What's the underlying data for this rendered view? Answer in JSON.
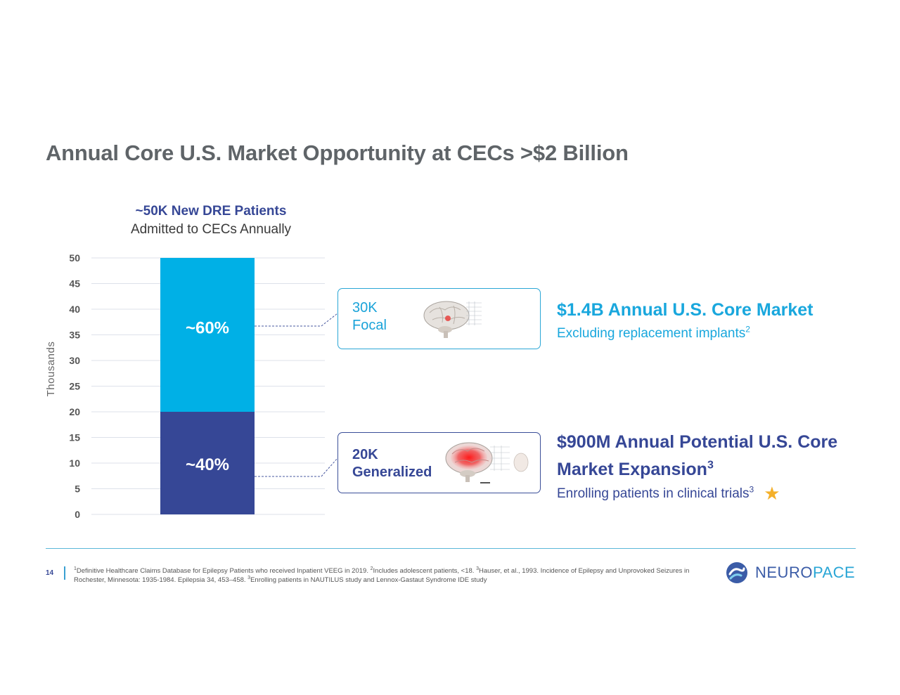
{
  "title": "Annual Core U.S. Market Opportunity at CECs >$2 Billion",
  "chart_heading": {
    "line1": "~50K New DRE Patients",
    "line2": "Admitted to CECs Annually"
  },
  "chart_data": {
    "type": "bar",
    "stacked": true,
    "categories": [
      ""
    ],
    "series": [
      {
        "name": "",
        "values": [
          20
        ],
        "label": "~40%",
        "color": "#364796"
      },
      {
        "name": "",
        "values": [
          30
        ],
        "label": "~60%",
        "color": "#00b0e6"
      }
    ],
    "ylabel": "Thousands",
    "ylim": [
      0,
      50
    ],
    "yticks": [
      0,
      5,
      10,
      15,
      20,
      25,
      30,
      35,
      40,
      45,
      50
    ],
    "grid": true
  },
  "callouts": {
    "focal": {
      "count": "30K",
      "label": "Focal"
    },
    "generalized": {
      "count": "20K",
      "label": "Generalized"
    }
  },
  "market": {
    "core_heading": "$1.4B Annual U.S. Core Market",
    "core_sub": "Excluding replacement implants",
    "core_sub_sup": "2",
    "expansion_line1": "$900M Annual Potential U.S. Core",
    "expansion_line2": "Market Expansion",
    "expansion_sup": "3",
    "expansion_sub": "Enrolling patients in clinical trials",
    "expansion_sub_sup": "3"
  },
  "footer": {
    "page_number": "14",
    "fn1_sup": "1",
    "fn1": "Definitive Healthcare Claims Database for Epilepsy Patients who received Inpatient VEEG in 2019. ",
    "fn2_sup": "2",
    "fn2": "Includes adolescent patients, <18. ",
    "fn3_sup": "3",
    "fn3": "Hauser, et al., 1993. Incidence of Epilepsy and Unprovoked Seizures in Rochester, Minnesota: 1935-1984. Epilepsia 34, 453–458. ",
    "fn4_sup": "3",
    "fn4": "Enrolling patients in NAUTILUS study and Lennox-Gastaut Syndrome IDE study"
  },
  "logo": {
    "part1": "NEURO",
    "part2": "PACE"
  },
  "colors": {
    "focal": "#00b0e6",
    "generalized": "#364796",
    "star": "#f4b02a"
  }
}
